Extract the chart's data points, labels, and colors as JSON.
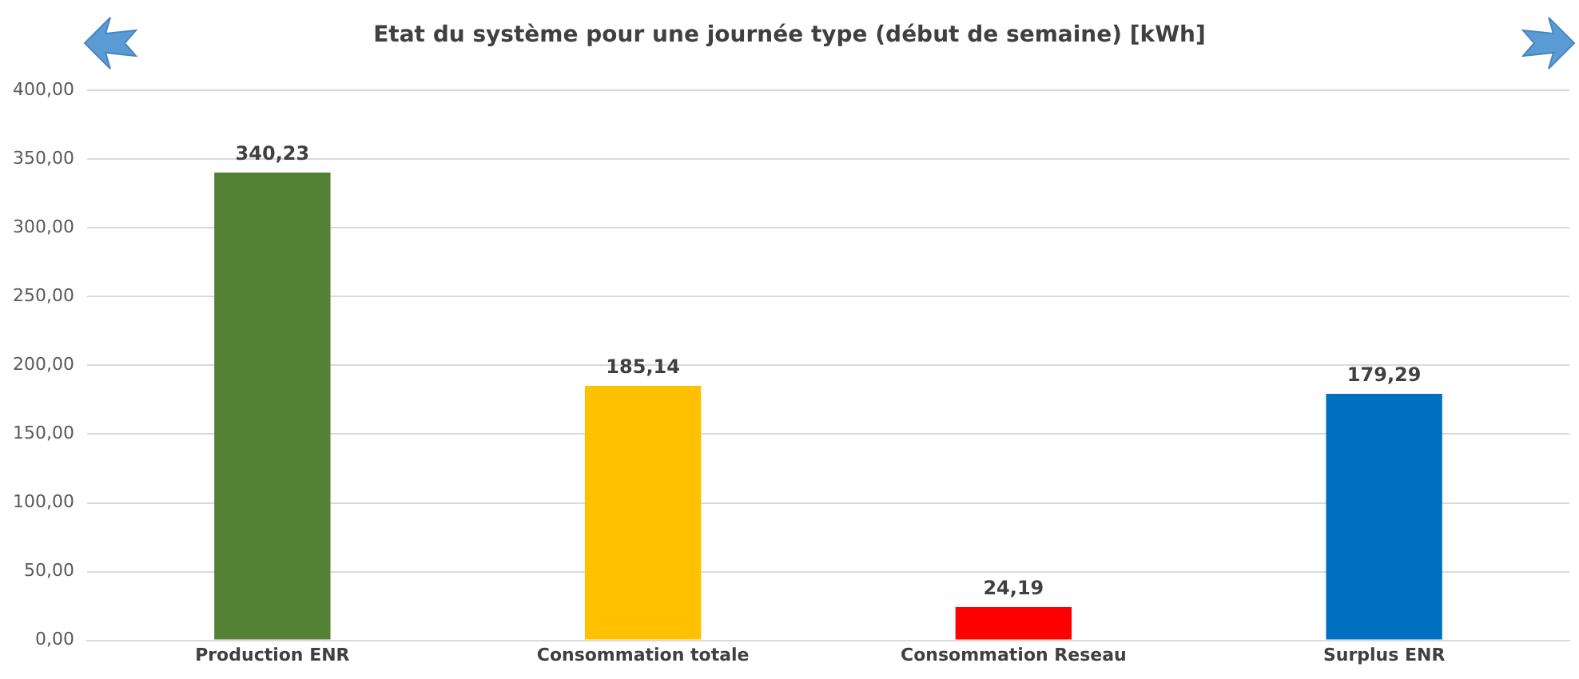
{
  "chart_data": {
    "type": "bar",
    "title": "Etat du système pour une journée type (début de semaine) [kWh]",
    "categories": [
      "Production ENR",
      "Consommation totale",
      "Consommation Reseau",
      "Surplus ENR"
    ],
    "values": [
      340.23,
      185.14,
      24.19,
      179.29
    ],
    "colors": [
      "#548235",
      "#ffc000",
      "#ff0000",
      "#0070c0"
    ],
    "value_labels": [
      "340,23",
      "185,14",
      "24,19",
      "179,29"
    ],
    "ylim": [
      0,
      400
    ],
    "yticks": [
      {
        "value": 0,
        "label": "0,00"
      },
      {
        "value": 50,
        "label": "50,00"
      },
      {
        "value": 100,
        "label": "100,00"
      },
      {
        "value": 150,
        "label": "150,00"
      },
      {
        "value": 200,
        "label": "200,00"
      },
      {
        "value": 250,
        "label": "250,00"
      },
      {
        "value": 300,
        "label": "300,00"
      },
      {
        "value": 350,
        "label": "350,00"
      },
      {
        "value": 400,
        "label": "400,00"
      }
    ],
    "grid": "y",
    "legend": false
  }
}
